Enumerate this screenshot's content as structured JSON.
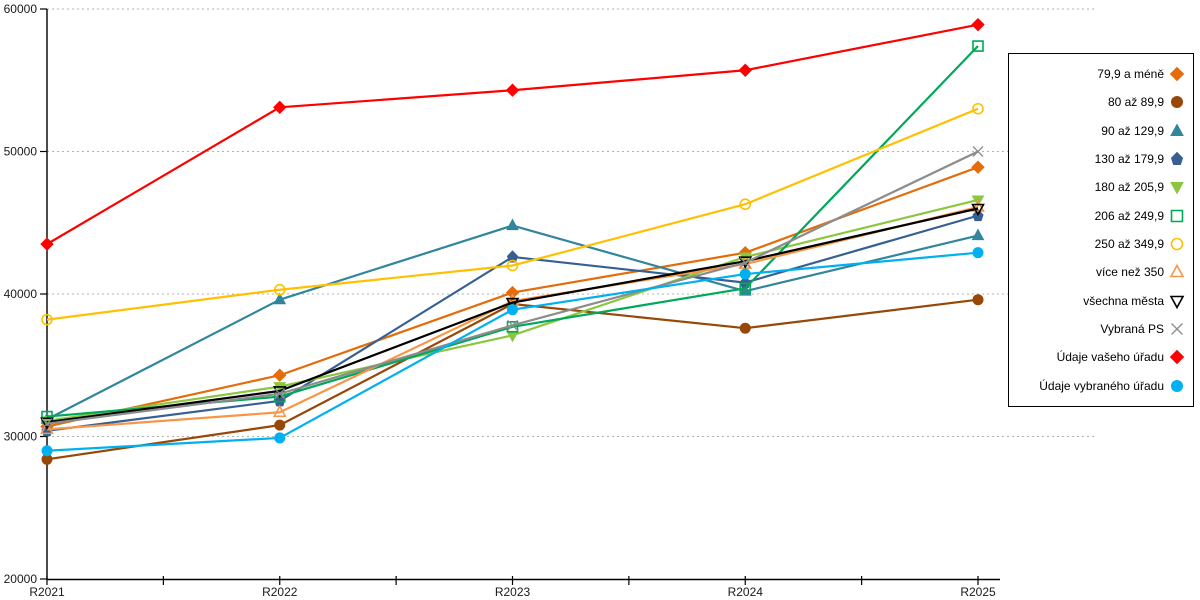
{
  "chart_data": {
    "type": "line",
    "title": "",
    "xlabel": "",
    "ylabel": "",
    "categories": [
      "R2021",
      "R2022",
      "R2023",
      "R2024",
      "R2025"
    ],
    "ylim": [
      20000,
      60000
    ],
    "yticks": [
      20000,
      30000,
      40000,
      50000,
      60000
    ],
    "grid": "horizontal-dotted",
    "legend_position": "right",
    "axis_color": "#000000",
    "gridline_color": "#b3b3b3",
    "series": [
      {
        "name": "79,9 a méně",
        "marker": "diamond",
        "fill": true,
        "color": "#E46C0A",
        "values": [
          30700,
          34300,
          40100,
          42900,
          48900
        ]
      },
      {
        "name": "80 až 89,9",
        "marker": "circle",
        "fill": true,
        "color": "#974807",
        "values": [
          28400,
          30800,
          39300,
          37600,
          39600
        ]
      },
      {
        "name": "90 až 129,9",
        "marker": "triangle-up",
        "fill": true,
        "color": "#31859C",
        "values": [
          31200,
          39600,
          44800,
          40200,
          44100
        ]
      },
      {
        "name": "130 až 179,9",
        "marker": "pentagon",
        "fill": true,
        "color": "#376092",
        "values": [
          30400,
          32500,
          42600,
          40800,
          45500
        ]
      },
      {
        "name": "180 až 205,9",
        "marker": "triangle-down",
        "fill": true,
        "color": "#8CC63F",
        "values": [
          31100,
          33500,
          37100,
          42600,
          46600
        ]
      },
      {
        "name": "206 až 249,9",
        "marker": "square",
        "fill": false,
        "color": "#00A859",
        "values": [
          31400,
          32800,
          37700,
          40400,
          57400
        ]
      },
      {
        "name": "250 až 349,9",
        "marker": "circle",
        "fill": false,
        "color": "#FFC000",
        "values": [
          38200,
          40300,
          42000,
          46300,
          53000
        ]
      },
      {
        "name": "více než 350",
        "marker": "triangle-up",
        "fill": false,
        "color": "#F79646",
        "values": [
          30500,
          31700,
          39500,
          42100,
          46100
        ]
      },
      {
        "name": "všechna města",
        "marker": "triangle-down",
        "fill": false,
        "color": "#000000",
        "values": [
          31000,
          33200,
          39400,
          42300,
          46000
        ]
      },
      {
        "name": "Vybraná PS",
        "marker": "x",
        "fill": false,
        "color": "#8C8C8C",
        "values": [
          30900,
          33000,
          37800,
          42200,
          50000
        ]
      },
      {
        "name": "Údaje vašeho úřadu",
        "marker": "diamond",
        "fill": true,
        "color": "#FF0000",
        "values": [
          43500,
          53100,
          54300,
          55700,
          58900
        ]
      },
      {
        "name": "Údaje vybraného úřadu",
        "marker": "circle",
        "fill": true,
        "color": "#00B0F0",
        "values": [
          29000,
          29900,
          38900,
          41400,
          42900
        ]
      }
    ]
  }
}
